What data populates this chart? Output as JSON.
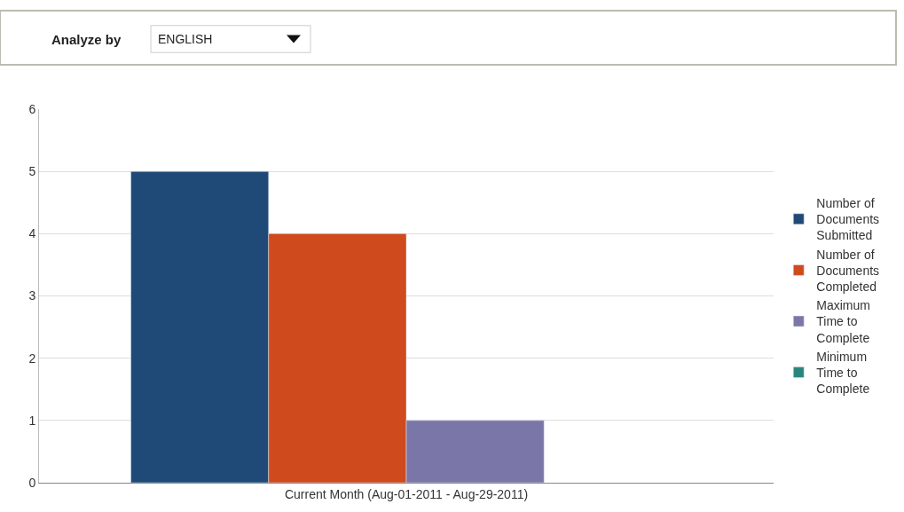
{
  "chart_data": {
    "type": "bar",
    "categories": [
      "Current Month (Aug-01-2011 - Aug-29-2011)"
    ],
    "series": [
      {
        "name": "Number of Documents Submitted",
        "color": "#1f4a78",
        "values": [
          5
        ]
      },
      {
        "name": "Number of Documents Completed",
        "color": "#cf4a1c",
        "values": [
          4
        ]
      },
      {
        "name": "Maximum Time to Complete",
        "color": "#7a77a8",
        "values": [
          1
        ]
      },
      {
        "name": "Minimum Time to Complete",
        "color": "#2a857d",
        "values": [
          null
        ]
      }
    ],
    "ylim": [
      0,
      6
    ],
    "yticks": [
      0,
      1,
      2,
      3,
      4,
      5,
      6
    ],
    "grid": "y",
    "legend": "right",
    "annotations": [
      "Analyze by",
      "ENGLISH"
    ]
  }
}
